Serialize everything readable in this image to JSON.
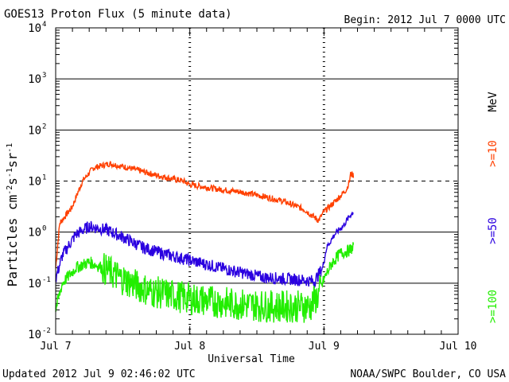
{
  "chart_data": {
    "type": "line",
    "title": "GOES13 Proton Flux (5 minute data)",
    "begin_label": "Begin: 2012 Jul 7 0000 UTC",
    "xlabel": "Universal Time",
    "ylabel_main": "Particles cm",
    "ylabel_sup1": "-2",
    "ylabel_mid1": "s",
    "ylabel_sup2": "-1",
    "ylabel_mid2": "sr",
    "ylabel_sup3": "-1",
    "x_ticks": [
      "Jul 7",
      "Jul 8",
      "Jul 9",
      "Jul 10"
    ],
    "x_range_days": [
      0,
      3
    ],
    "y_log_range": [
      -2,
      4
    ],
    "y_ticks": [
      {
        "base": "10",
        "exp": "-2"
      },
      {
        "base": "10",
        "exp": "-1"
      },
      {
        "base": "10",
        "exp": "0"
      },
      {
        "base": "10",
        "exp": "1"
      },
      {
        "base": "10",
        "exp": "2"
      },
      {
        "base": "10",
        "exp": "3"
      },
      {
        "base": "10",
        "exp": "4"
      }
    ],
    "mev_label": "MeV",
    "series": [
      {
        "name": ">=10",
        "color": "#ff4000",
        "points_day_value": [
          [
            0.0,
            0.2
          ],
          [
            0.03,
            1.5
          ],
          [
            0.12,
            3.0
          ],
          [
            0.2,
            10
          ],
          [
            0.28,
            18
          ],
          [
            0.4,
            22
          ],
          [
            0.55,
            18
          ],
          [
            0.75,
            13
          ],
          [
            0.95,
            10
          ],
          [
            1.0,
            8.5
          ],
          [
            1.2,
            7
          ],
          [
            1.4,
            6
          ],
          [
            1.55,
            5
          ],
          [
            1.7,
            4
          ],
          [
            1.85,
            2.8
          ],
          [
            1.96,
            1.7
          ],
          [
            2.0,
            2.5
          ],
          [
            2.06,
            3.5
          ],
          [
            2.12,
            5
          ],
          [
            2.17,
            7
          ],
          [
            2.19,
            10
          ],
          [
            2.2,
            14
          ],
          [
            2.22,
            13
          ]
        ]
      },
      {
        "name": ">=50",
        "color": "#2a00e0",
        "points_day_value": [
          [
            0.0,
            0.12
          ],
          [
            0.05,
            0.35
          ],
          [
            0.15,
            0.9
          ],
          [
            0.25,
            1.3
          ],
          [
            0.38,
            1.1
          ],
          [
            0.5,
            0.8
          ],
          [
            0.65,
            0.5
          ],
          [
            0.8,
            0.38
          ],
          [
            1.0,
            0.28
          ],
          [
            1.3,
            0.18
          ],
          [
            1.55,
            0.13
          ],
          [
            1.75,
            0.12
          ],
          [
            1.93,
            0.11
          ],
          [
            1.99,
            0.2
          ],
          [
            2.02,
            0.5
          ],
          [
            2.08,
            0.9
          ],
          [
            2.15,
            1.4
          ],
          [
            2.2,
            2.2
          ],
          [
            2.22,
            2.5
          ]
        ]
      },
      {
        "name": ">=100",
        "color": "#22ee00",
        "points_day_value": [
          [
            0.0,
            0.03
          ],
          [
            0.05,
            0.1
          ],
          [
            0.15,
            0.2
          ],
          [
            0.25,
            0.26
          ],
          [
            0.35,
            0.2
          ],
          [
            0.5,
            0.12
          ],
          [
            0.7,
            0.07
          ],
          [
            1.0,
            0.05
          ],
          [
            1.3,
            0.04
          ],
          [
            1.6,
            0.035
          ],
          [
            1.9,
            0.035
          ],
          [
            1.96,
            0.06
          ],
          [
            2.0,
            0.12
          ],
          [
            2.06,
            0.25
          ],
          [
            2.12,
            0.38
          ],
          [
            2.2,
            0.45
          ],
          [
            2.22,
            0.55
          ]
        ]
      }
    ]
  },
  "footer": {
    "updated": "Updated 2012 Jul  9 02:46:02 UTC",
    "source": "NOAA/SWPC Boulder, CO USA"
  }
}
